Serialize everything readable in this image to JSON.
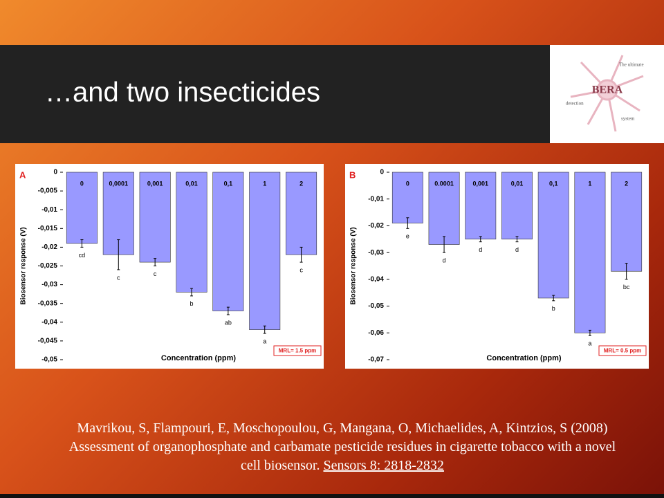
{
  "title": "…and two insecticides",
  "logo": {
    "name": "BERA",
    "tagline": "The ultimate",
    "line2": "detection",
    "line3": "system"
  },
  "citation": {
    "text": "Mavrikou, S, Flampouri, E, Moschopoulou, G, Mangana, O, Michaelides, A, Kintzios, S (2008) Assessment of organophosphate and carbamate pesticide residues in cigarette tobacco with a novel cell biosensor.",
    "source": "Sensors 8: 2818-2832"
  },
  "chart_data": [
    {
      "type": "bar",
      "panel": "A",
      "ylabel": "Biosensor response (V)",
      "xlabel": "Concentration (ppm)",
      "annotation": "MRL= 1.5 ppm",
      "color": "#9999ff",
      "categories": [
        "0",
        "0,0001",
        "0,001",
        "0,01",
        "0,1",
        "1",
        "2"
      ],
      "values": [
        -0.019,
        -0.022,
        -0.024,
        -0.032,
        -0.037,
        -0.042,
        -0.022
      ],
      "errors": [
        0.001,
        0.004,
        0.001,
        0.001,
        0.001,
        0.001,
        0.002
      ],
      "letters": [
        "cd",
        "c",
        "c",
        "b",
        "ab",
        "a",
        "c"
      ],
      "ylim": [
        -0.05,
        0
      ],
      "yticks": [
        0,
        {
          "value": -0.005,
          "label": "-0,005"
        },
        {
          "value": -0.01,
          "label": "-0,01"
        },
        {
          "value": -0.015,
          "label": "-0,015"
        },
        {
          "value": -0.02,
          "label": "-0,02"
        },
        {
          "value": -0.025,
          "label": "-0,025"
        },
        {
          "value": -0.03,
          "label": "-0,03"
        },
        {
          "value": -0.035,
          "label": "-0,035"
        },
        {
          "value": -0.04,
          "label": "-0,04"
        },
        {
          "value": -0.045,
          "label": "-0,045"
        },
        {
          "value": -0.05,
          "label": "-0,05"
        }
      ]
    },
    {
      "type": "bar",
      "panel": "B",
      "ylabel": "Biosensor response (V)",
      "xlabel": "Concentration (ppm)",
      "annotation": "MRL= 0.5 ppm",
      "color": "#9999ff",
      "categories": [
        "0",
        "0.0001",
        "0,001",
        "0,01",
        "0,1",
        "1",
        "2"
      ],
      "values": [
        -0.019,
        -0.027,
        -0.025,
        -0.025,
        -0.047,
        -0.06,
        -0.037
      ],
      "errors": [
        0.002,
        0.003,
        0.001,
        0.001,
        0.001,
        0.001,
        0.003
      ],
      "letters": [
        "e",
        "d",
        "d",
        "d",
        "b",
        "a",
        "bc"
      ],
      "ylim": [
        -0.07,
        0
      ],
      "yticks": [
        0,
        {
          "value": -0.01,
          "label": "-0,01"
        },
        {
          "value": -0.02,
          "label": "-0,02"
        },
        {
          "value": -0.03,
          "label": "-0,03"
        },
        {
          "value": -0.04,
          "label": "-0,04"
        },
        {
          "value": -0.05,
          "label": "-0,05"
        },
        {
          "value": -0.06,
          "label": "-0,06"
        },
        {
          "value": -0.07,
          "label": "-0,07"
        }
      ]
    }
  ]
}
